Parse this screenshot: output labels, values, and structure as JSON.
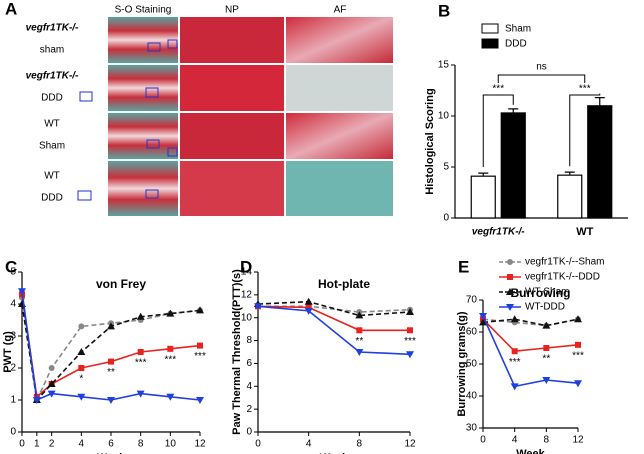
{
  "panel_a": {
    "letter": "A",
    "columns": [
      "S-O Staining",
      "NP",
      "AF"
    ],
    "rows": [
      {
        "line1": "vegfr1TK-/-",
        "line2": "sham"
      },
      {
        "line1": "vegfr1TK-/-",
        "line2": "DDD"
      },
      {
        "line1": "WT",
        "line2": "Sham"
      },
      {
        "line1": "WT",
        "line2": "DDD"
      }
    ]
  },
  "chart_data": [
    {
      "type": "bar",
      "panel": "B",
      "ylabel": "Histological Scoring",
      "categories": [
        "vegfr1TK-/-",
        "WT"
      ],
      "ylim": [
        0,
        15
      ],
      "yticks": [
        0,
        5,
        10,
        15
      ],
      "series": [
        {
          "name": "Sham",
          "color": "#ffffff",
          "values": [
            4.1,
            4.2
          ],
          "errors": [
            0.3,
            0.3
          ]
        },
        {
          "name": "DDD",
          "color": "#000000",
          "values": [
            10.3,
            11.0
          ],
          "errors": [
            0.4,
            0.8
          ]
        }
      ],
      "annotations": [
        "***",
        "***",
        "ns"
      ]
    },
    {
      "type": "line",
      "panel": "C",
      "title": "von Frey",
      "ylabel": "PWT (g)",
      "xlabel": "Week",
      "x": [
        0,
        1,
        2,
        4,
        6,
        8,
        10,
        12
      ],
      "xlim": [
        0,
        12
      ],
      "xticks": [
        0,
        1,
        2,
        4,
        6,
        8,
        10,
        12
      ],
      "ylim": [
        0,
        5
      ],
      "yticks": [
        0,
        1,
        2,
        3,
        4,
        5
      ],
      "series": [
        {
          "color": "#888888",
          "dash": true,
          "marker": "circle",
          "values": [
            4.2,
            1.0,
            2.0,
            3.3,
            3.4,
            3.5,
            3.7,
            3.8
          ]
        },
        {
          "color": "#e8231f",
          "dash": false,
          "marker": "square",
          "values": [
            4.3,
            1.1,
            1.5,
            2.0,
            2.2,
            2.5,
            2.6,
            2.7
          ]
        },
        {
          "color": "#111111",
          "dash": true,
          "marker": "triangle",
          "values": [
            4.0,
            1.0,
            1.5,
            2.5,
            3.3,
            3.6,
            3.7,
            3.8
          ]
        },
        {
          "color": "#1f3fe0",
          "dash": false,
          "marker": "down",
          "values": [
            4.4,
            1.0,
            1.2,
            1.1,
            1.0,
            1.2,
            1.1,
            1.0
          ]
        }
      ],
      "annotations": [
        {
          "x": 4,
          "text": "*"
        },
        {
          "x": 6,
          "text": "**"
        },
        {
          "x": 8,
          "text": "***"
        },
        {
          "x": 10,
          "text": "***"
        },
        {
          "x": 12,
          "text": "***"
        }
      ]
    },
    {
      "type": "line",
      "panel": "D",
      "title": "Hot-plate",
      "ylabel": "Paw Thermal Threshold(PTT)(s)",
      "xlabel": "Week",
      "x": [
        0,
        4,
        8,
        12
      ],
      "xlim": [
        0,
        12
      ],
      "xticks": [
        0,
        4,
        8,
        12
      ],
      "ylim": [
        0,
        14
      ],
      "yticks": [
        0,
        2,
        4,
        6,
        8,
        10,
        12,
        14
      ],
      "series": [
        {
          "color": "#888888",
          "dash": true,
          "marker": "circle",
          "values": [
            11.0,
            11.0,
            10.5,
            10.7
          ]
        },
        {
          "color": "#e8231f",
          "dash": false,
          "marker": "square",
          "values": [
            11.0,
            10.9,
            8.9,
            8.9
          ]
        },
        {
          "color": "#111111",
          "dash": true,
          "marker": "triangle",
          "values": [
            11.2,
            11.4,
            10.2,
            10.5
          ]
        },
        {
          "color": "#1f3fe0",
          "dash": false,
          "marker": "down",
          "values": [
            11.0,
            10.6,
            7.0,
            6.8
          ]
        }
      ],
      "annotations": [
        {
          "x": 8,
          "text": "**"
        },
        {
          "x": 12,
          "text": "***"
        }
      ]
    },
    {
      "type": "line",
      "panel": "E",
      "title": "Burrowing",
      "ylabel": "Burrowing grams(g)",
      "xlabel": "Week",
      "x": [
        0,
        4,
        8,
        12
      ],
      "xlim": [
        0,
        12
      ],
      "xticks": [
        0,
        4,
        8,
        12
      ],
      "ylim": [
        30,
        70
      ],
      "yticks": [
        30,
        40,
        50,
        60,
        70
      ],
      "legend": "top-right",
      "series": [
        {
          "name": "vegfr1TK-/--Sham",
          "color": "#888888",
          "dash": true,
          "marker": "circle",
          "values": [
            64,
            63,
            62,
            64
          ]
        },
        {
          "name": "vegfr1TK-/--DDD",
          "color": "#e8231f",
          "dash": false,
          "marker": "square",
          "values": [
            64,
            54,
            55,
            56
          ]
        },
        {
          "name": "WT-Sham",
          "color": "#111111",
          "dash": true,
          "marker": "triangle",
          "values": [
            63,
            64,
            62,
            64
          ]
        },
        {
          "name": "WT-DDD",
          "color": "#1f3fe0",
          "dash": false,
          "marker": "down",
          "values": [
            65,
            43,
            45,
            44
          ]
        }
      ],
      "annotations": [
        {
          "x": 4,
          "text": "***"
        },
        {
          "x": 8,
          "text": "**"
        },
        {
          "x": 12,
          "text": "***"
        }
      ]
    }
  ]
}
